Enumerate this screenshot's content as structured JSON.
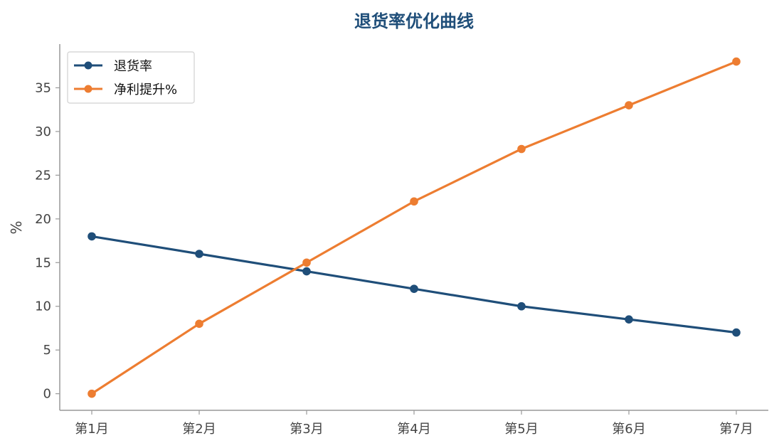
{
  "chart_data": {
    "type": "line",
    "title": "退货率优化曲线",
    "xlabel": "",
    "ylabel": "%",
    "categories": [
      "第1月",
      "第2月",
      "第3月",
      "第4月",
      "第5月",
      "第6月",
      "第7月"
    ],
    "series": [
      {
        "name": "退货率",
        "color": "#1F4E79",
        "values": [
          18,
          16,
          14,
          12,
          10,
          8.5,
          7
        ]
      },
      {
        "name": "净利提升%",
        "color": "#ED7D31",
        "values": [
          0,
          8,
          15,
          22,
          28,
          33,
          38
        ]
      }
    ],
    "ylim": [
      -1.9,
      40
    ],
    "yticks": [
      0,
      5,
      10,
      15,
      20,
      25,
      30,
      35
    ],
    "legend_position": "top-left",
    "grid": false
  }
}
